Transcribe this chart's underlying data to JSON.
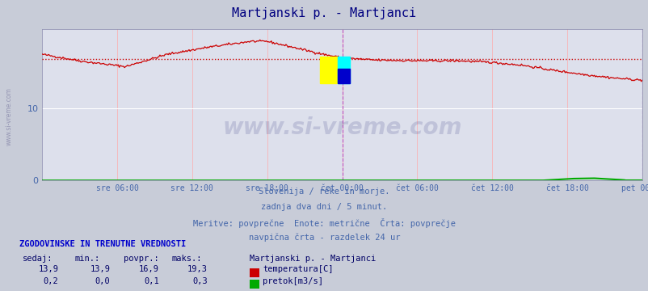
{
  "title": "Martjanski p. - Martjanci",
  "title_color": "#000080",
  "bg_color": "#c8ccd8",
  "plot_bg_color": "#dde0ec",
  "watermark_text": "www.si-vreme.com",
  "watermark_color": "#1a1a6e",
  "subtitle_lines": [
    "Slovenija / reke in morje.",
    "zadnja dva dni / 5 minut.",
    "Meritve: povprečne  Enote: metrične  Črta: povprečje",
    "navpična črta - razdelek 24 ur"
  ],
  "subtitle_color": "#4466aa",
  "table_header": "ZGODOVINSKE IN TRENUTNE VREDNOSTI",
  "table_header_color": "#0000cc",
  "table_col_headers": [
    "sedaj:",
    "min.:",
    "povpr.:",
    "maks.:"
  ],
  "station_name": "Martjanski p. - Martjanci",
  "rows": [
    {
      "values": [
        "13,9",
        "13,9",
        "16,9",
        "19,3"
      ],
      "label": "temperatura[C]",
      "color": "#cc0000"
    },
    {
      "values": [
        "0,2",
        "0,0",
        "0,1",
        "0,3"
      ],
      "label": "pretok[m3/s]",
      "color": "#00aa00"
    }
  ],
  "xmin": 0,
  "xmax": 576,
  "ymin": 0,
  "ymax": 21,
  "avg_line_value": 16.9,
  "avg_line_color": "#cc0000",
  "xtick_positions": [
    72,
    144,
    216,
    288,
    360,
    432,
    504,
    576
  ],
  "xtick_labels": [
    "sre 06:00",
    "sre 12:00",
    "sre 18:00",
    "čet 00:00",
    "čet 06:00",
    "čet 12:00",
    "čet 18:00",
    "pet 00:00"
  ],
  "ytick_positions": [
    0,
    10
  ],
  "vline_positions": [
    288,
    576
  ],
  "vline_color": "#bb44bb",
  "temp_line_color": "#cc0000",
  "flow_line_color": "#00aa00",
  "tick_color": "#4466aa",
  "side_text": "www.si-vreme.com",
  "side_text_color": "#8888aa"
}
